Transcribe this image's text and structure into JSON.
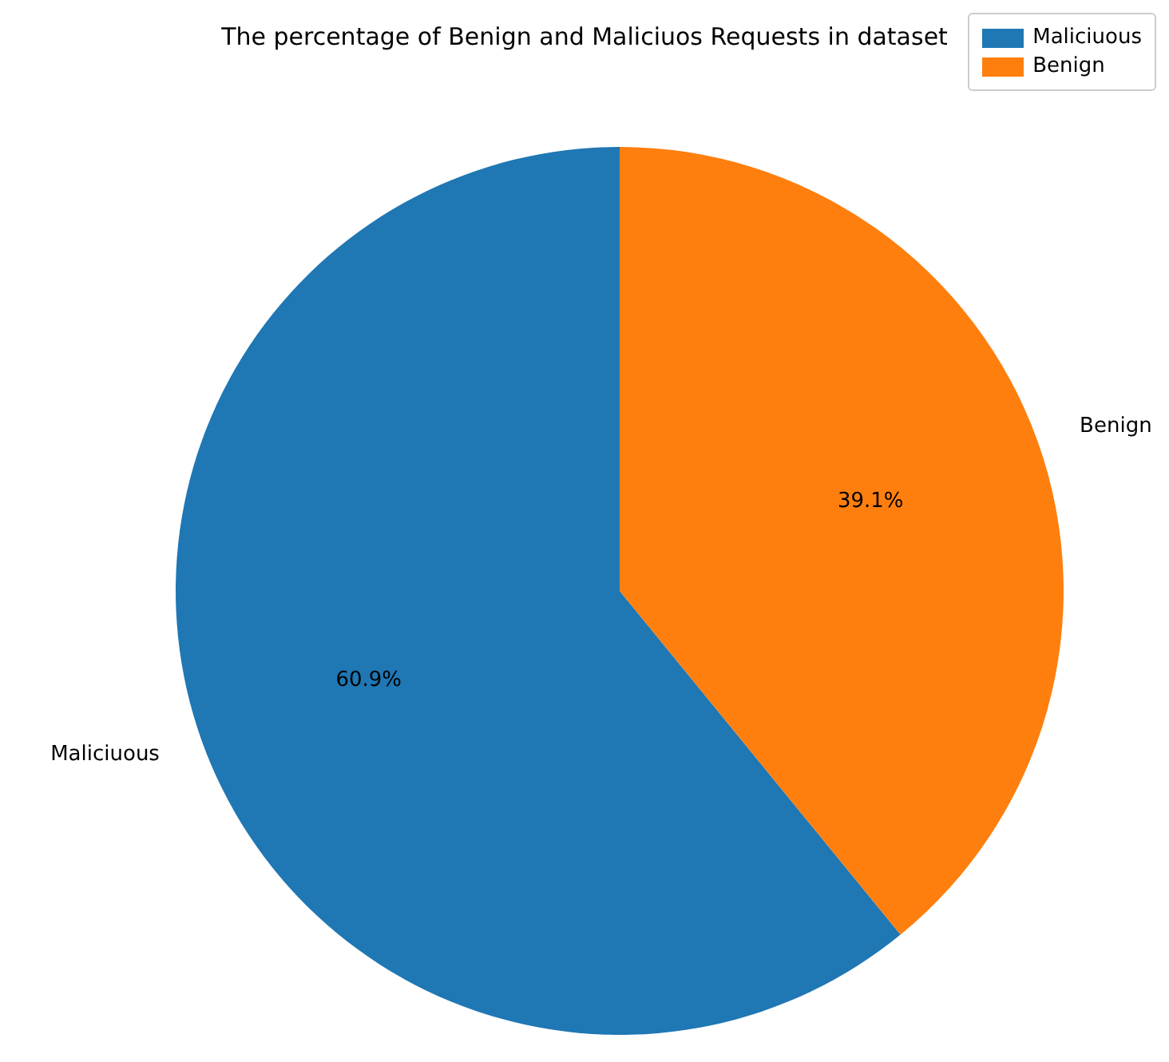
{
  "chart_data": {
    "type": "pie",
    "title": "The percentage of Benign and Maliciuos Requests in dataset",
    "categories": [
      "Maliciuous",
      "Benign"
    ],
    "values": [
      60.9,
      39.1
    ],
    "colors": [
      "#1f77b4",
      "#ff7f0e"
    ],
    "value_labels": [
      "60.9%",
      "39.1%"
    ],
    "legend": "top right"
  }
}
